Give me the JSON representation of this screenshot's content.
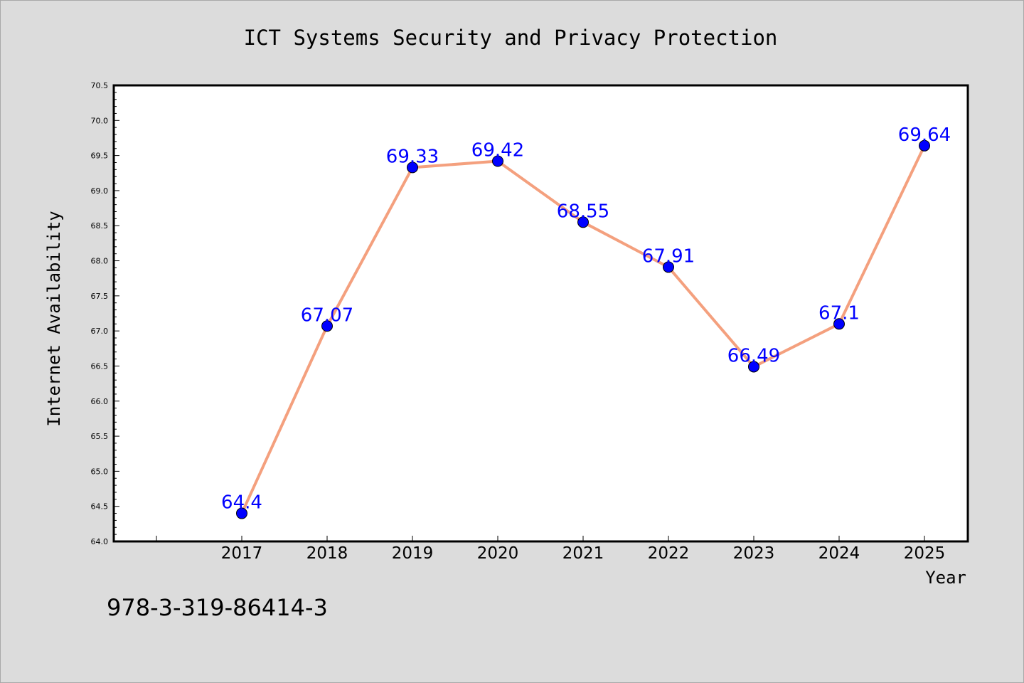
{
  "footer_text": "978-3-319-86414-3",
  "colors": {
    "background": "#dcdcdc",
    "plot_background": "#ffffff",
    "line": "#f4a07e",
    "marker": "#0000ff",
    "label": "#0000ff",
    "text": "#000000"
  },
  "chart_data": {
    "type": "line",
    "title": "ICT Systems Security and Privacy Protection",
    "xlabel": "Year",
    "ylabel": "Internet Availability",
    "categories": [
      "2017",
      "2018",
      "2019",
      "2020",
      "2021",
      "2022",
      "2023",
      "2024",
      "2025"
    ],
    "series": [
      {
        "values": [
          64.4,
          67.07,
          69.33,
          69.42,
          68.55,
          67.91,
          66.49,
          67.1,
          69.64
        ],
        "labels": [
          "64.4",
          "67.07",
          "69.33",
          "69.42",
          "68.55",
          "67.91",
          "66.49",
          "67.1",
          "69.64"
        ]
      }
    ],
    "ylim": [
      64.0,
      70.5
    ],
    "yticks": [
      "64.0",
      "64.5",
      "65.0",
      "65.5",
      "66.0",
      "66.5",
      "67.0",
      "67.5",
      "68.0",
      "68.5",
      "69.0",
      "69.5",
      "70.0",
      "70.5"
    ],
    "grid": false,
    "legend": "none"
  }
}
